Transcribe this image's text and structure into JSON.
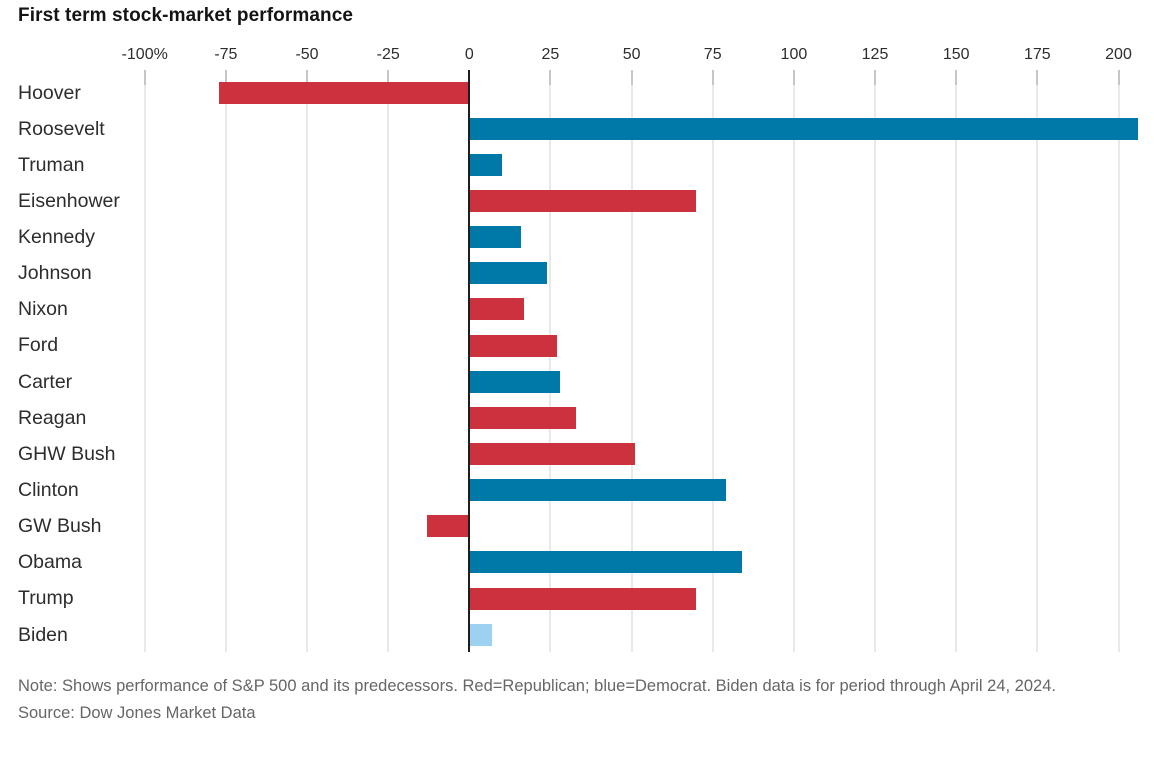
{
  "chart_data": {
    "type": "bar",
    "orientation": "horizontal",
    "title": "First term stock-market performance",
    "xlabel": "",
    "ylabel": "",
    "xlim": [
      -100,
      211
    ],
    "grid": true,
    "legend": "none",
    "x_ticks": [
      -100,
      -75,
      -50,
      -25,
      0,
      25,
      50,
      75,
      100,
      125,
      150,
      175,
      200
    ],
    "x_tick_labels": [
      "-100%",
      "-75",
      "-50",
      "-25",
      "0",
      "25",
      "50",
      "75",
      "100",
      "125",
      "150",
      "175",
      "200"
    ],
    "categories": [
      "Hoover",
      "Roosevelt",
      "Truman",
      "Eisenhower",
      "Kennedy",
      "Johnson",
      "Nixon",
      "Ford",
      "Carter",
      "Reagan",
      "GHW Bush",
      "Clinton",
      "GW Bush",
      "Obama",
      "Trump",
      "Biden"
    ],
    "series": [
      {
        "name": "First term performance (%)",
        "values": [
          -77,
          206,
          10,
          70,
          16,
          24,
          17,
          27,
          28,
          33,
          51,
          79,
          -13,
          84,
          70,
          7
        ]
      }
    ],
    "bar_parties": [
      "Republican",
      "Democrat",
      "Democrat",
      "Republican",
      "Democrat",
      "Democrat",
      "Republican",
      "Republican",
      "Democrat",
      "Republican",
      "Republican",
      "Democrat",
      "Republican",
      "Democrat",
      "Republican",
      "Democrat"
    ],
    "partial_bars": [
      "Biden"
    ],
    "colors": {
      "republican": "#cc313e",
      "democrat": "#0078a8",
      "democrat_partial": "#9cd1f1",
      "zero_line": "#1d1d1d",
      "gridline": "#e9e9e9"
    },
    "note": "Note: Shows performance of S&P 500 and its predecessors. Red=Republican; blue=Democrat. Biden data is for period through April 24, 2024.",
    "source": "Source: Dow Jones Market Data"
  }
}
